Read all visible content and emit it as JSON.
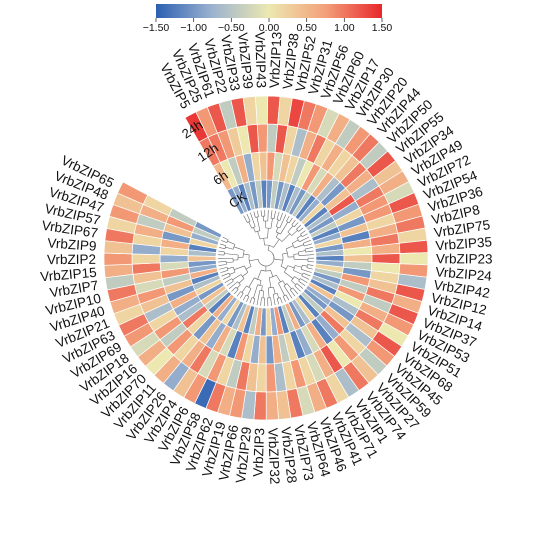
{
  "chart_data": {
    "type": "heatmap",
    "layout": "circular",
    "title": "",
    "color_scale": {
      "min": -1.5,
      "max": 1.5,
      "stops": [
        "#2c5fb2",
        "#9cb3cf",
        "#ece8b0",
        "#f3a07a",
        "#e8272b"
      ],
      "ticks": [
        "−1.50",
        "−1.00",
        "−0.50",
        "0.00",
        "0.50",
        "1.00",
        "1.50"
      ]
    },
    "rings": [
      "CK",
      "6h",
      "12h",
      "24h"
    ],
    "genes": [
      "VrbZIP5",
      "VrbZIP25",
      "VrbZIP61",
      "VrbZIP22",
      "VrbZIP33",
      "VrbZIP39",
      "VrbZIP43",
      "VrbZIP13",
      "VrbZIP38",
      "VrbZIP52",
      "VrbZIP31",
      "VrbZIP56",
      "VrbZIP60",
      "VrbZIP17",
      "VrbZIP30",
      "VrbZIP20",
      "VrbZIP44",
      "VrbZIP50",
      "VrbZIP55",
      "VrbZIP34",
      "VrbZIP49",
      "VrbZIP72",
      "VrbZIP54",
      "VrbZIP36",
      "VrbZIP8",
      "VrbZIP75",
      "VrbZIP35",
      "VrbZIP23",
      "VrbZIP24",
      "VrbZIP42",
      "VrbZIP12",
      "VrbZIP14",
      "VrbZIP37",
      "VrbZIP53",
      "VrbZIP51",
      "VrbZIP68",
      "VrbZIP45",
      "VrbZIP59",
      "VrbZIP27",
      "VrbZIP74",
      "VrbZIP1",
      "VrbZIP71",
      "VrbZIP41",
      "VrbZIP46",
      "VrbZIP64",
      "VrbZIP73",
      "VrbZIP28",
      "VrbZIP32",
      "VrbZIP3",
      "VrbZIP29",
      "VrbZIP66",
      "VrbZIP19",
      "VrbZIP62",
      "VrbZIP58",
      "VrbZIP6",
      "VrbZIP4",
      "VrbZIP26",
      "VrbZIP11",
      "VrbZIP70",
      "VrbZIP16",
      "VrbZIP18",
      "VrbZIP69",
      "VrbZIP63",
      "VrbZIP21",
      "VrbZIP40",
      "VrbZIP10",
      "VrbZIP7",
      "VrbZIP15",
      "VrbZIP2",
      "VrbZIP9",
      "VrbZIP67",
      "VrbZIP57",
      "VrbZIP47",
      "VrbZIP48",
      "VrbZIP65"
    ],
    "values": [
      [
        -1.0,
        0.5,
        1.0,
        1.4
      ],
      [
        -0.8,
        0.0,
        1.0,
        0.8
      ],
      [
        -1.2,
        -0.4,
        0.8,
        1.2
      ],
      [
        -0.6,
        0.6,
        0.3,
        -0.4
      ],
      [
        -1.0,
        -0.8,
        0.0,
        1.2
      ],
      [
        -0.4,
        0.2,
        1.2,
        0.2
      ],
      [
        -1.2,
        0.4,
        0.8,
        0.0
      ],
      [
        -1.0,
        0.8,
        -0.4,
        1.2
      ],
      [
        -0.4,
        -0.2,
        1.2,
        0.2
      ],
      [
        -1.0,
        0.4,
        0.2,
        1.3
      ],
      [
        -0.6,
        0.2,
        -0.6,
        1.0
      ],
      [
        -1.2,
        -0.4,
        0.6,
        0.8
      ],
      [
        -0.6,
        0.0,
        1.0,
        -0.2
      ],
      [
        -1.0,
        0.8,
        0.2,
        0.6
      ],
      [
        -0.4,
        -0.2,
        0.6,
        -0.4
      ],
      [
        -1.2,
        0.6,
        0.2,
        0.8
      ],
      [
        -0.8,
        -0.6,
        0.4,
        1.0
      ],
      [
        0.2,
        -1.0,
        1.0,
        -0.4
      ],
      [
        -1.2,
        0.4,
        0.6,
        1.2
      ],
      [
        -0.6,
        1.2,
        -0.6,
        0.4
      ],
      [
        -1.0,
        -0.8,
        1.0,
        0.6
      ],
      [
        -0.4,
        0.2,
        0.8,
        -0.2
      ],
      [
        -1.2,
        -1.0,
        0.8,
        1.2
      ],
      [
        -0.8,
        0.4,
        0.2,
        0.8
      ],
      [
        0.2,
        -1.2,
        0.6,
        1.0
      ],
      [
        -1.0,
        0.6,
        1.0,
        0.2
      ],
      [
        -0.6,
        0.0,
        0.6,
        1.2
      ],
      [
        -1.2,
        0.4,
        1.2,
        0.0
      ],
      [
        -0.8,
        -0.4,
        0.0,
        0.8
      ],
      [
        0.2,
        -1.0,
        0.2,
        -0.6
      ],
      [
        -0.4,
        0.8,
        0.4,
        1.2
      ],
      [
        -1.0,
        -0.4,
        1.0,
        0.6
      ],
      [
        -0.6,
        0.8,
        -0.4,
        1.2
      ],
      [
        -1.2,
        0.0,
        0.6,
        0.8
      ],
      [
        0.4,
        -0.6,
        1.0,
        0.0
      ],
      [
        -0.8,
        -1.0,
        0.4,
        1.2
      ],
      [
        -1.0,
        0.4,
        -0.6,
        0.8
      ],
      [
        -0.4,
        1.0,
        0.2,
        -0.4
      ],
      [
        -1.2,
        -0.8,
        0.8,
        0.4
      ],
      [
        0.2,
        -1.2,
        0.0,
        1.0
      ],
      [
        -0.6,
        0.6,
        1.2,
        -0.6
      ],
      [
        -1.0,
        -0.2,
        0.6,
        0.2
      ],
      [
        0.6,
        -0.8,
        -0.2,
        1.0
      ],
      [
        -0.4,
        -1.2,
        0.2,
        0.6
      ],
      [
        -1.2,
        0.2,
        0.8,
        -0.2
      ],
      [
        0.8,
        -0.4,
        0.2,
        1.0
      ],
      [
        -0.8,
        0.6,
        -0.6,
        0.4
      ],
      [
        0.2,
        -1.0,
        0.8,
        0.6
      ],
      [
        -1.0,
        0.4,
        0.2,
        1.0
      ],
      [
        0.6,
        -0.8,
        0.4,
        -0.6
      ],
      [
        -0.4,
        0.2,
        1.0,
        0.8
      ],
      [
        -1.2,
        0.8,
        -0.4,
        0.6
      ],
      [
        0.4,
        -1.2,
        0.2,
        1.0
      ],
      [
        -0.6,
        -0.2,
        0.8,
        -1.4
      ],
      [
        -1.0,
        0.6,
        -0.2,
        0.8
      ],
      [
        0.2,
        -0.8,
        1.0,
        0.4
      ],
      [
        -0.8,
        0.4,
        0.6,
        -0.8
      ],
      [
        0.6,
        -1.0,
        0.2,
        0.6
      ],
      [
        -1.2,
        0.2,
        0.8,
        0.0
      ],
      [
        -0.4,
        1.0,
        -0.4,
        0.6
      ],
      [
        0.4,
        -0.6,
        0.8,
        -0.2
      ],
      [
        -1.0,
        -0.8,
        0.2,
        0.8
      ],
      [
        0.2,
        0.6,
        -0.6,
        1.0
      ],
      [
        -0.6,
        -1.0,
        0.4,
        0.2
      ],
      [
        -1.2,
        0.4,
        0.8,
        0.6
      ],
      [
        0.6,
        -0.4,
        -0.2,
        1.0
      ],
      [
        -0.8,
        0.8,
        0.4,
        -0.4
      ],
      [
        -1.0,
        -0.2,
        1.0,
        0.6
      ],
      [
        0.4,
        -0.8,
        0.2,
        0.8
      ],
      [
        -0.6,
        0.2,
        -0.8,
        0.4
      ],
      [
        -1.2,
        0.6,
        0.2,
        1.0
      ],
      [
        0.2,
        -1.0,
        0.6,
        0.2
      ],
      [
        -0.8,
        0.4,
        -0.4,
        0.8
      ],
      [
        -0.4,
        0.8,
        0.6,
        0.4
      ],
      [
        -1.0,
        -0.4,
        0.2,
        0.8
      ]
    ],
    "legend_position": "top-center",
    "grid": false
  }
}
